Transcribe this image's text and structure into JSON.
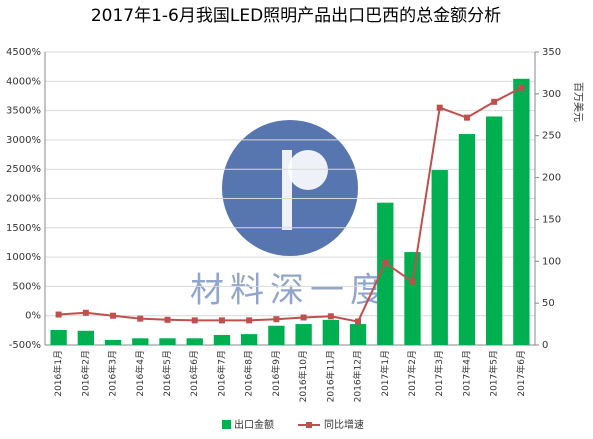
{
  "chart_data": {
    "type": "combo",
    "title": "2017年1-6月我国LED照明产品出口巴西的总金额分析",
    "y2_label": "百万美元",
    "watermark": "材料深一度",
    "categories": [
      "2016年1月",
      "2016年2月",
      "2016年3月",
      "2016年4月",
      "2016年5月",
      "2016年6月",
      "2016年7月",
      "2016年8月",
      "2016年9月",
      "2016年10月",
      "2016年11月",
      "2016年12月",
      "2017年1月",
      "2017年2月",
      "2017年3月",
      "2017年4月",
      "2017年5月",
      "2017年6月"
    ],
    "series": [
      {
        "name": "出口金额",
        "type": "bar",
        "axis": "y2",
        "color": "#00b050",
        "values": [
          18,
          17,
          6,
          8,
          8,
          8,
          12,
          13,
          23,
          25,
          30,
          25,
          170,
          111,
          209,
          252,
          273,
          318
        ]
      },
      {
        "name": "同比增速",
        "type": "line",
        "color": "#c0504d",
        "values": [
          20,
          50,
          0,
          -50,
          -70,
          -80,
          -80,
          -80,
          -60,
          -30,
          -10,
          -100,
          900,
          580,
          3550,
          3380,
          3650,
          3890
        ]
      }
    ],
    "ylim": [
      -500,
      4500
    ],
    "yticks": [
      {
        "value": -500,
        "label": "-500%"
      },
      {
        "value": 0,
        "label": "0%"
      },
      {
        "value": 500,
        "label": "500%"
      },
      {
        "value": 1000,
        "label": "1000%"
      },
      {
        "value": 1500,
        "label": "1500%"
      },
      {
        "value": 2000,
        "label": "2000%"
      },
      {
        "value": 2500,
        "label": "2500%"
      },
      {
        "value": 3000,
        "label": "3000%"
      },
      {
        "value": 3500,
        "label": "3500%"
      },
      {
        "value": 4000,
        "label": "4000%"
      },
      {
        "value": 4500,
        "label": "4500%"
      }
    ],
    "y2lim": [
      0,
      350
    ],
    "y2ticks": [
      0,
      50,
      100,
      150,
      200,
      250,
      300,
      350
    ],
    "grid": true
  }
}
